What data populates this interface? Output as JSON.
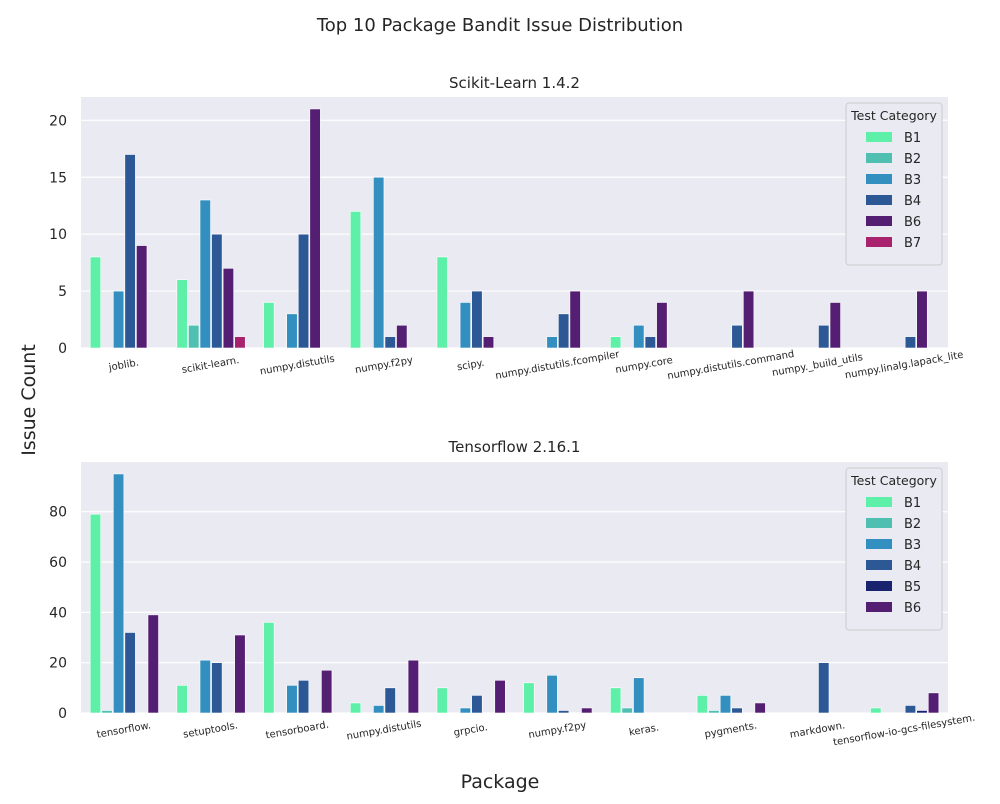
{
  "figure": {
    "title": "Top 10 Package Bandit Issue Distribution",
    "ylabel": "Issue Count",
    "xlabel": "Package"
  },
  "chart_data": [
    {
      "type": "bar",
      "title": "Scikit-Learn 1.4.2",
      "xlabel": "Package",
      "ylabel": "Issue Count",
      "ylim": [
        0,
        22.05
      ],
      "yticks": [
        0,
        5,
        10,
        15,
        20
      ],
      "grid": true,
      "legend": {
        "title": "Test Category",
        "position": "top-right"
      },
      "categories": [
        "joblib.",
        "scikit-learn.",
        "numpy.distutils",
        "numpy.f2py",
        "scipy.",
        "numpy.distutils.fcompiler",
        "numpy.core",
        "numpy.distutils.command",
        "numpy._build_utils",
        "numpy.linalg.lapack_lite"
      ],
      "series": [
        {
          "name": "B1",
          "color": "#5ef0a8",
          "values": [
            8,
            6,
            4,
            12,
            8,
            0,
            1,
            0,
            0,
            0
          ]
        },
        {
          "name": "B2",
          "color": "#4fbfb2",
          "values": [
            0,
            2,
            0,
            0,
            0,
            0,
            0,
            0,
            0,
            0
          ]
        },
        {
          "name": "B3",
          "color": "#338fbf",
          "values": [
            5,
            13,
            3,
            15,
            4,
            1,
            2,
            0,
            0,
            0
          ]
        },
        {
          "name": "B4",
          "color": "#2c5896",
          "values": [
            17,
            10,
            10,
            1,
            5,
            3,
            1,
            2,
            2,
            1
          ]
        },
        {
          "name": "B6",
          "color": "#541f73",
          "values": [
            9,
            7,
            21,
            2,
            1,
            5,
            4,
            5,
            4,
            5
          ]
        },
        {
          "name": "B7",
          "color": "#a8226e",
          "values": [
            0,
            1,
            0,
            0,
            0,
            0,
            0,
            0,
            0,
            0
          ]
        }
      ]
    },
    {
      "type": "bar",
      "title": "Tensorflow 2.16.1",
      "xlabel": "Package",
      "ylabel": "Issue Count",
      "ylim": [
        0,
        99.75
      ],
      "yticks": [
        0,
        20,
        40,
        60,
        80
      ],
      "grid": true,
      "legend": {
        "title": "Test Category",
        "position": "top-right"
      },
      "categories": [
        "tensorflow.",
        "setuptools.",
        "tensorboard.",
        "numpy.distutils",
        "grpcio.",
        "numpy.f2py",
        "keras.",
        "pygments.",
        "markdown.",
        "tensorflow-io-gcs-filesystem."
      ],
      "series": [
        {
          "name": "B1",
          "color": "#5ef0a8",
          "values": [
            79,
            11,
            36,
            4,
            10,
            12,
            10,
            7,
            0,
            2
          ]
        },
        {
          "name": "B2",
          "color": "#4fbfb2",
          "values": [
            1,
            0,
            0,
            0,
            0,
            0,
            2,
            1,
            0,
            0
          ]
        },
        {
          "name": "B3",
          "color": "#338fbf",
          "values": [
            95,
            21,
            11,
            3,
            2,
            15,
            14,
            7,
            0,
            0
          ]
        },
        {
          "name": "B4",
          "color": "#2c5896",
          "values": [
            32,
            20,
            13,
            10,
            7,
            1,
            0,
            2,
            20,
            3
          ]
        },
        {
          "name": "B5",
          "color": "#1a236e",
          "values": [
            0,
            0,
            0,
            0,
            0,
            0,
            0,
            0,
            0,
            1
          ]
        },
        {
          "name": "B6",
          "color": "#541f73",
          "values": [
            39,
            31,
            17,
            21,
            13,
            2,
            0,
            4,
            0,
            8
          ]
        }
      ]
    }
  ]
}
